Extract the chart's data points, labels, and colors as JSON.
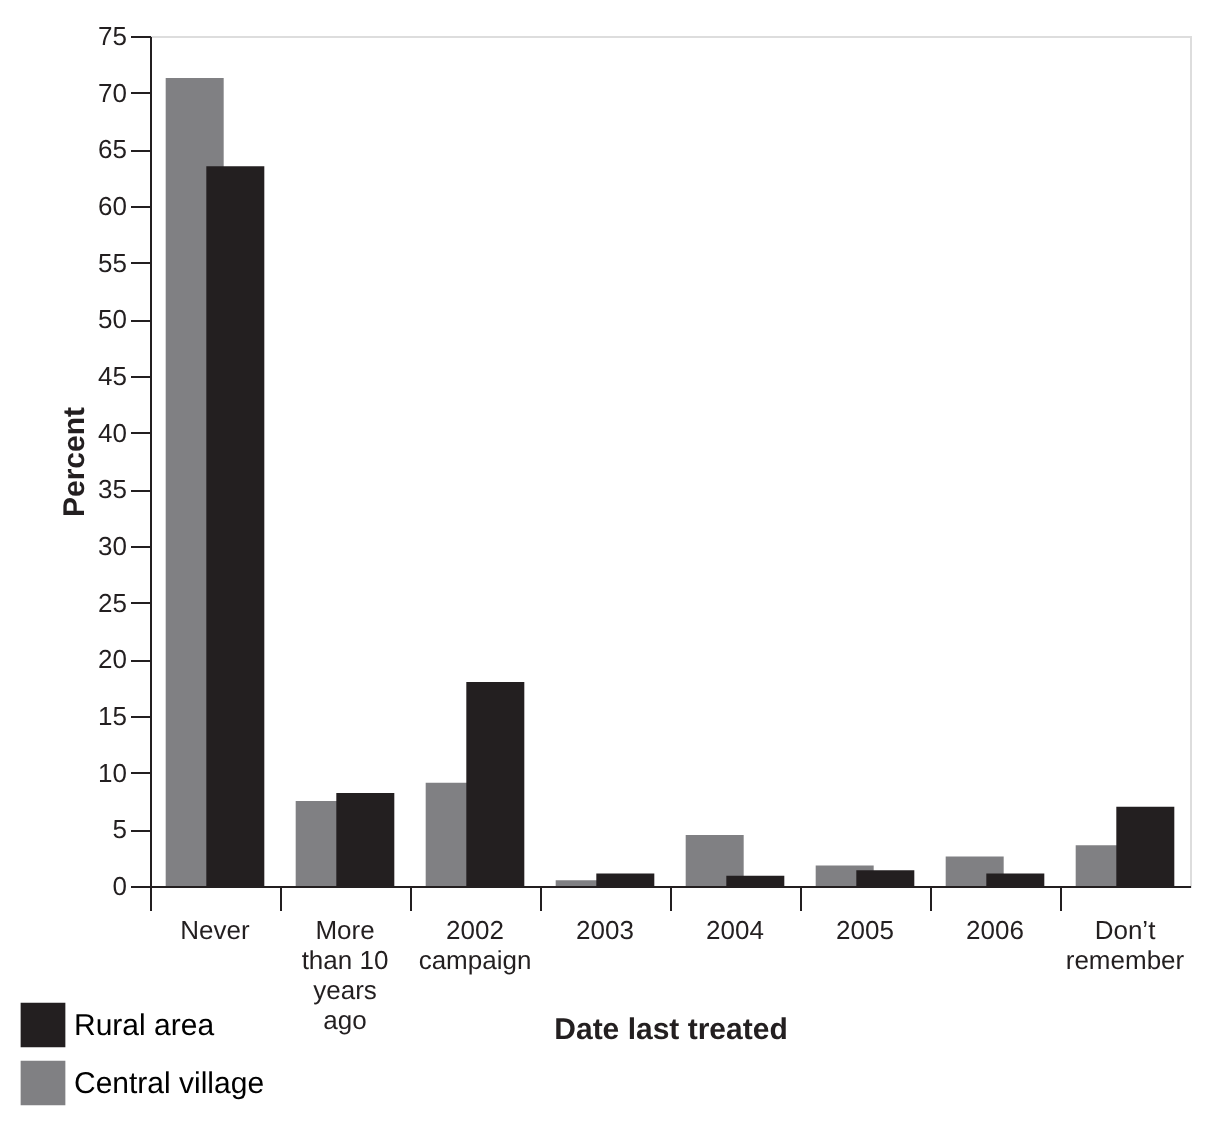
{
  "chart_data": {
    "type": "bar",
    "categories": [
      "Never",
      "More than 10 years ago",
      "2002 campaign",
      "2003",
      "2004",
      "2005",
      "2006",
      "Don’t remember"
    ],
    "series": [
      {
        "name": "Central village",
        "color": "#808083",
        "values": [
          71.3,
          7.5,
          9.1,
          0.5,
          4.5,
          1.8,
          2.6,
          3.6
        ]
      },
      {
        "name": "Rural area",
        "color": "#231f20",
        "values": [
          63.5,
          8.2,
          18.0,
          1.1,
          0.9,
          1.4,
          1.1,
          7.0
        ]
      }
    ],
    "xlabel": "Date last treated",
    "ylabel": "Percent",
    "ylim": [
      0,
      75
    ],
    "yticks": [
      0,
      5,
      10,
      15,
      20,
      25,
      30,
      35,
      40,
      45,
      50,
      55,
      60,
      65,
      70,
      75
    ],
    "grid": false,
    "legend": "bottom left"
  }
}
